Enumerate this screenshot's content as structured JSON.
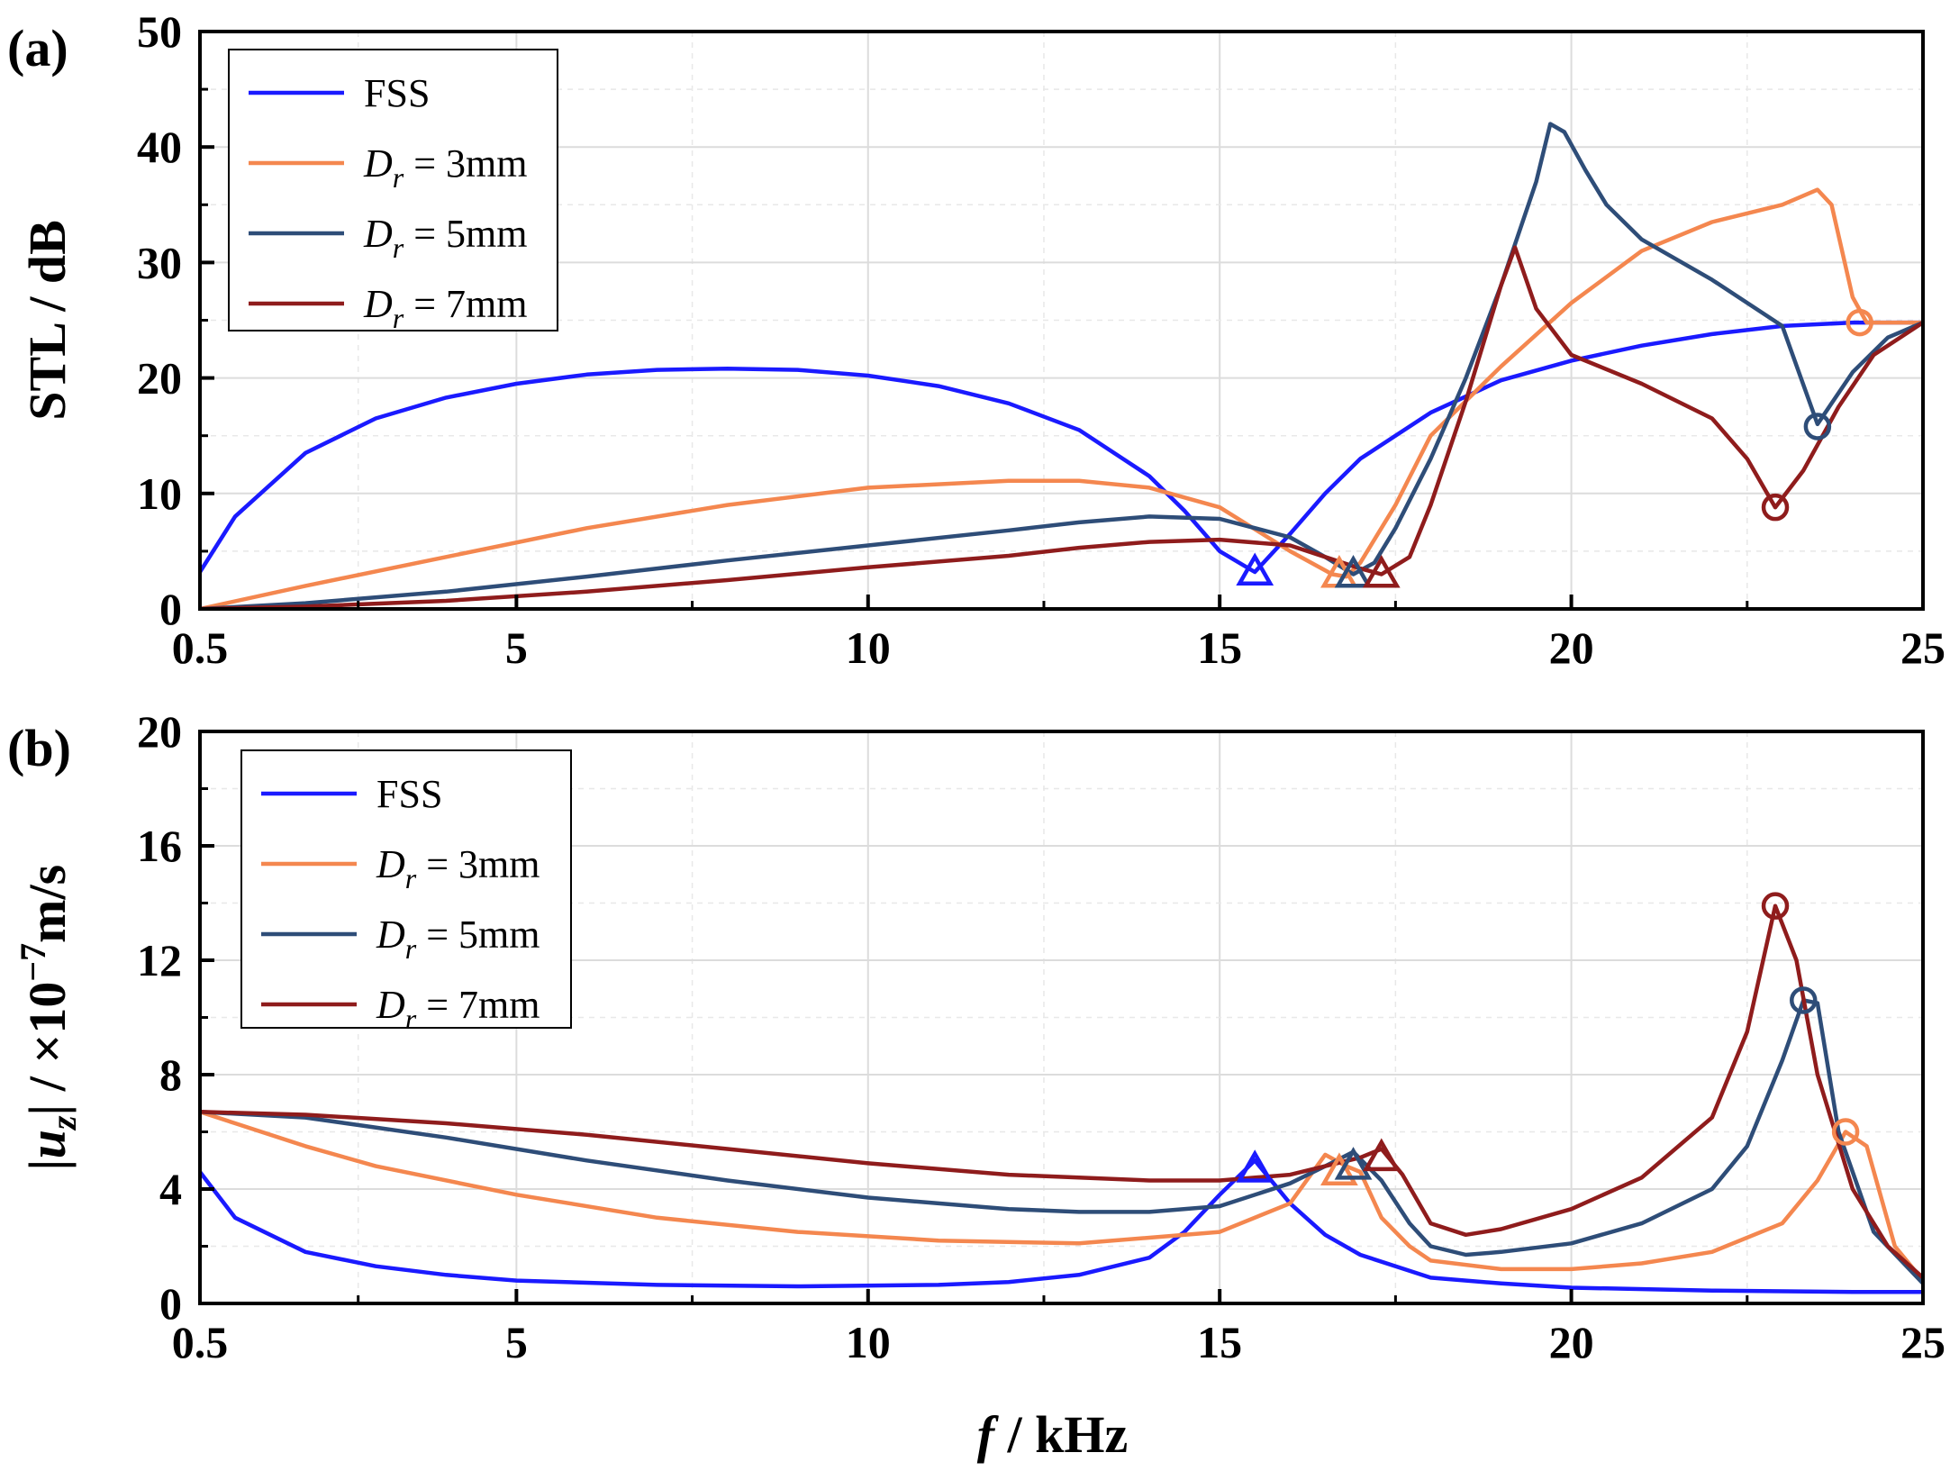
{
  "chart_data": [
    {
      "panel_label": "(a)",
      "type": "line",
      "ylabel": "STL / dB",
      "xlim": [
        0.5,
        25
      ],
      "ylim": [
        0,
        50
      ],
      "xticks": [
        0.5,
        5,
        10,
        15,
        20,
        25
      ],
      "xtick_labels": [
        "0.5",
        "5",
        "10",
        "15",
        "20",
        "25"
      ],
      "yticks": [
        0,
        10,
        20,
        30,
        40,
        50
      ],
      "ytick_labels": [
        "0",
        "10",
        "20",
        "30",
        "40",
        "50"
      ],
      "grid": true,
      "legend": {
        "placement": "top-left",
        "entries": [
          {
            "prefix": "FSS",
            "subscript": "",
            "suffix": ""
          },
          {
            "prefix": "D",
            "subscript": "r",
            "suffix": " = 3mm"
          },
          {
            "prefix": "D",
            "subscript": "r",
            "suffix": " = 5mm"
          },
          {
            "prefix": "D",
            "subscript": "r",
            "suffix": " = 7mm"
          }
        ]
      },
      "series": [
        {
          "name": "FSS",
          "color": "#1a1aff",
          "x": [
            0.5,
            1,
            2,
            3,
            4,
            5,
            6,
            7,
            8,
            9,
            10,
            11,
            12,
            13,
            14,
            14.5,
            15,
            15.5,
            16,
            16.5,
            17,
            18,
            19,
            20,
            21,
            22,
            23,
            24,
            25
          ],
          "y": [
            3.2,
            8,
            13.5,
            16.5,
            18.3,
            19.5,
            20.3,
            20.7,
            20.8,
            20.7,
            20.2,
            19.3,
            17.8,
            15.5,
            11.5,
            8.5,
            5,
            3.2,
            6.5,
            10,
            13,
            17,
            19.8,
            21.5,
            22.8,
            23.8,
            24.5,
            24.8,
            24.8
          ],
          "markers": [
            {
              "x": 15.5,
              "y": 3.2,
              "shape": "triangle"
            }
          ]
        },
        {
          "name": "Dr = 3mm",
          "color": "#f4874f",
          "x": [
            0.5,
            2,
            4,
            6,
            8,
            10,
            12,
            13,
            14,
            15,
            16,
            16.6,
            16.8,
            17,
            17.5,
            18,
            19,
            20,
            21,
            22,
            23,
            23.5,
            23.7,
            24,
            24.2,
            25
          ],
          "y": [
            0,
            2,
            4.5,
            7,
            9,
            10.5,
            11.1,
            11.1,
            10.5,
            8.8,
            5,
            3,
            2.8,
            4,
            9,
            15,
            21,
            26.5,
            31,
            33.5,
            35,
            36.3,
            35,
            27,
            24.8,
            24.8
          ],
          "markers": [
            {
              "x": 16.7,
              "y": 3,
              "shape": "triangle"
            },
            {
              "x": 24.1,
              "y": 24.8,
              "shape": "circle"
            }
          ]
        },
        {
          "name": "Dr = 5mm",
          "color": "#2e4d78",
          "x": [
            0.5,
            2,
            4,
            6,
            8,
            10,
            12,
            13,
            14,
            15,
            16,
            16.5,
            16.9,
            17.2,
            17.5,
            18,
            18.5,
            19,
            19.5,
            19.7,
            19.9,
            20.2,
            20.5,
            21,
            22,
            23,
            23.5,
            24,
            24.5,
            25
          ],
          "y": [
            0,
            0.5,
            1.5,
            2.8,
            4.2,
            5.5,
            6.8,
            7.5,
            8,
            7.8,
            6.2,
            4.5,
            3,
            4,
            7,
            13,
            20,
            28,
            37,
            42,
            41.3,
            38,
            35,
            32,
            28.5,
            24.5,
            16,
            20.5,
            23.5,
            24.8
          ],
          "markers": [
            {
              "x": 16.9,
              "y": 3,
              "shape": "triangle"
            },
            {
              "x": 23.5,
              "y": 15.8,
              "shape": "circle"
            }
          ]
        },
        {
          "name": "Dr = 7mm",
          "color": "#8f1c1c",
          "x": [
            0.5,
            2,
            4,
            6,
            8,
            10,
            12,
            13,
            14,
            15,
            16,
            16.5,
            17,
            17.3,
            17.7,
            18,
            18.5,
            19,
            19.2,
            19.5,
            20,
            21,
            22,
            22.5,
            22.9,
            23.3,
            23.8,
            24.3,
            25
          ],
          "y": [
            0,
            0.2,
            0.7,
            1.5,
            2.5,
            3.6,
            4.6,
            5.3,
            5.8,
            6,
            5.5,
            4.5,
            3.5,
            3,
            4.5,
            9,
            18,
            28,
            31.3,
            26,
            22,
            19.5,
            16.5,
            13,
            8.8,
            12,
            17.5,
            22,
            24.8
          ],
          "markers": [
            {
              "x": 17.3,
              "y": 3,
              "shape": "triangle"
            },
            {
              "x": 22.9,
              "y": 8.8,
              "shape": "circle"
            }
          ]
        }
      ]
    },
    {
      "panel_label": "(b)",
      "type": "line",
      "ylabel_main": "|u",
      "ylabel_sub": "z",
      "ylabel_mid": "| / ×10",
      "ylabel_sup": "−7",
      "ylabel_unit": "m/s",
      "xlabel_italic": "f",
      "xlabel_rest": " / kHz",
      "xlim": [
        0.5,
        25
      ],
      "ylim": [
        0,
        20
      ],
      "xticks": [
        0.5,
        5,
        10,
        15,
        20,
        25
      ],
      "xtick_labels": [
        "0.5",
        "5",
        "10",
        "15",
        "20",
        "25"
      ],
      "yticks": [
        0,
        4,
        8,
        12,
        16,
        20
      ],
      "ytick_labels": [
        "0",
        "4",
        "8",
        "12",
        "16",
        "20"
      ],
      "grid": true,
      "legend": {
        "placement": "top-left",
        "entries": [
          {
            "prefix": "FSS",
            "subscript": "",
            "suffix": ""
          },
          {
            "prefix": "D",
            "subscript": "r",
            "suffix": " = 3mm"
          },
          {
            "prefix": "D",
            "subscript": "r",
            "suffix": " = 5mm"
          },
          {
            "prefix": "D",
            "subscript": "r",
            "suffix": " = 7mm"
          }
        ]
      },
      "series": [
        {
          "name": "FSS",
          "color": "#1a1aff",
          "x": [
            0.5,
            1,
            2,
            3,
            4,
            5,
            7,
            9,
            11,
            12,
            13,
            14,
            14.5,
            15,
            15.5,
            16,
            16.5,
            17,
            18,
            19,
            20,
            22,
            24,
            25
          ],
          "y": [
            4.6,
            3,
            1.8,
            1.3,
            1,
            0.8,
            0.65,
            0.6,
            0.65,
            0.75,
            1,
            1.6,
            2.5,
            3.8,
            5,
            3.5,
            2.4,
            1.7,
            0.9,
            0.7,
            0.55,
            0.45,
            0.4,
            0.4
          ],
          "markers": [
            {
              "x": 15.5,
              "y": 4.7,
              "shape": "triangle"
            }
          ]
        },
        {
          "name": "Dr = 3mm",
          "color": "#f4874f",
          "x": [
            0.5,
            1,
            2,
            3,
            5,
            7,
            9,
            11,
            13,
            15,
            16,
            16.5,
            16.8,
            17,
            17.3,
            17.7,
            18,
            19,
            20,
            21,
            22,
            23,
            23.5,
            23.9,
            24.2,
            24.6,
            25
          ],
          "y": [
            6.7,
            6.3,
            5.5,
            4.8,
            3.8,
            3,
            2.5,
            2.2,
            2.1,
            2.5,
            3.5,
            5.2,
            4.8,
            4.6,
            3,
            2,
            1.5,
            1.2,
            1.2,
            1.4,
            1.8,
            2.8,
            4.3,
            6,
            5.5,
            2,
            0.8
          ],
          "markers": [
            {
              "x": 16.7,
              "y": 4.6,
              "shape": "triangle"
            },
            {
              "x": 23.9,
              "y": 6,
              "shape": "circle"
            }
          ]
        },
        {
          "name": "Dr = 5mm",
          "color": "#2e4d78",
          "x": [
            0.5,
            2,
            4,
            6,
            8,
            10,
            12,
            13,
            14,
            15,
            16,
            16.5,
            16.9,
            17.3,
            17.7,
            18,
            18.5,
            19,
            20,
            21,
            22,
            22.5,
            23,
            23.3,
            23.5,
            23.8,
            24.3,
            25
          ],
          "y": [
            6.7,
            6.5,
            5.8,
            5,
            4.3,
            3.7,
            3.3,
            3.2,
            3.2,
            3.4,
            4.2,
            4.8,
            5.3,
            4.3,
            2.8,
            2,
            1.7,
            1.8,
            2.1,
            2.8,
            4,
            5.5,
            8.5,
            10.6,
            10.5,
            6,
            2.5,
            0.7
          ],
          "markers": [
            {
              "x": 16.9,
              "y": 4.8,
              "shape": "triangle"
            },
            {
              "x": 23.3,
              "y": 10.6,
              "shape": "circle"
            }
          ]
        },
        {
          "name": "Dr = 7mm",
          "color": "#8f1c1c",
          "x": [
            0.5,
            2,
            4,
            6,
            8,
            10,
            12,
            14,
            15,
            16,
            16.5,
            17,
            17.3,
            17.6,
            18,
            18.5,
            19,
            20,
            21,
            22,
            22.5,
            22.9,
            23.2,
            23.5,
            24,
            24.5,
            25
          ],
          "y": [
            6.7,
            6.6,
            6.3,
            5.9,
            5.4,
            4.9,
            4.5,
            4.3,
            4.3,
            4.5,
            4.8,
            5.1,
            5.4,
            4.5,
            2.8,
            2.4,
            2.6,
            3.3,
            4.4,
            6.5,
            9.5,
            13.9,
            12,
            8,
            4,
            2,
            0.9
          ],
          "markers": [
            {
              "x": 17.3,
              "y": 5.1,
              "shape": "triangle"
            },
            {
              "x": 22.9,
              "y": 13.9,
              "shape": "circle"
            }
          ]
        }
      ]
    }
  ]
}
